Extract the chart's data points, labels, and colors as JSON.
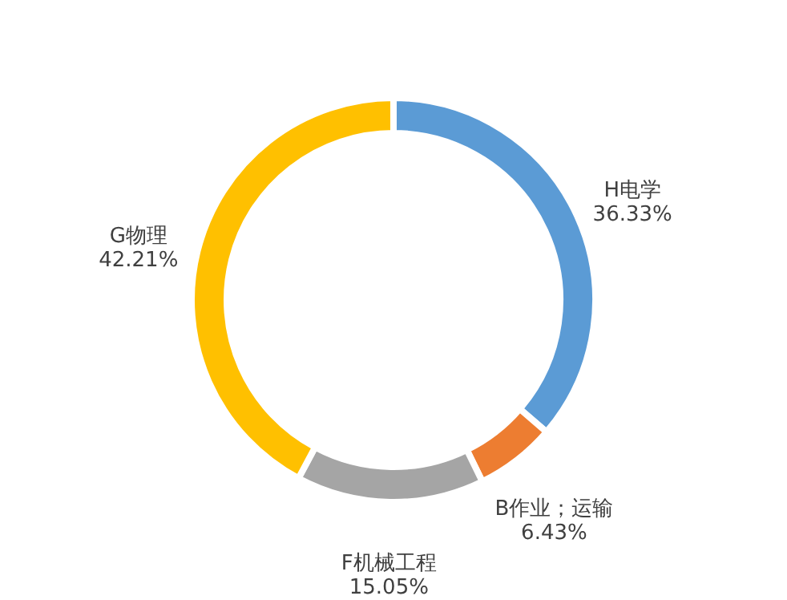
{
  "chart_data": {
    "type": "donut",
    "categories": [
      "H电学",
      "B作业；运输",
      "F机械工程",
      "G物理"
    ],
    "values": [
      36.33,
      6.43,
      15.05,
      42.21
    ],
    "colors": [
      "#5b9bd5",
      "#ed7d31",
      "#a5a5a5",
      "#ffc000"
    ],
    "value_labels": [
      "36.33%",
      "6.43%",
      "15.05%",
      "42.21%"
    ],
    "legend": false
  }
}
